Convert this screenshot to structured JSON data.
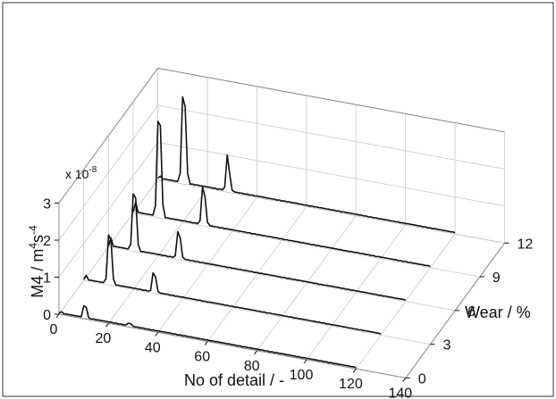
{
  "chart_data": {
    "type": "line",
    "projection": "3d-waterfall",
    "grid": true,
    "x_axis": {
      "label": "No of detail / -",
      "range": [
        0,
        140
      ],
      "ticks": [
        "0",
        "20",
        "40",
        "60",
        "80",
        "100",
        "120",
        "140"
      ]
    },
    "y_axis": {
      "label": "Wear / %",
      "range": [
        0,
        12
      ],
      "ticks": [
        "0",
        "3",
        "6",
        "9",
        "12"
      ]
    },
    "z_axis": {
      "label_main": "M4 / m",
      "label_sup1": "4",
      "label_mid": "s",
      "label_sup2": "-4",
      "range": [
        0,
        3e-08
      ],
      "ticks": [
        "0",
        "1",
        "2",
        "3"
      ],
      "multiplier": "x 10",
      "multiplier_exp": "-8"
    },
    "series": [
      {
        "wear": 0,
        "peaks": [
          [
            1,
            0.08
          ],
          [
            10,
            0.35
          ],
          [
            11,
            0.32
          ],
          [
            28,
            0.1
          ],
          [
            29,
            0.1
          ]
        ]
      },
      {
        "wear": 3,
        "peaks": [
          [
            1,
            0.15
          ],
          [
            10,
            1.35
          ],
          [
            11,
            1.25
          ],
          [
            28,
            0.55
          ],
          [
            29,
            0.45
          ]
        ]
      },
      {
        "wear": 6,
        "peaks": [
          [
            1,
            0.25
          ],
          [
            10,
            1.55
          ],
          [
            11,
            1.45
          ],
          [
            28,
            0.75
          ],
          [
            29,
            0.6
          ]
        ]
      },
      {
        "wear": 9,
        "peaks": [
          [
            1,
            0.3
          ],
          [
            10,
            2.6
          ],
          [
            11,
            2.5
          ],
          [
            28,
            1.05
          ],
          [
            29,
            0.8
          ]
        ]
      },
      {
        "wear": 12,
        "peaks": [
          [
            1,
            0.1
          ],
          [
            10,
            2.35
          ],
          [
            11,
            2.1
          ],
          [
            28,
            1.0
          ],
          [
            29,
            0.5
          ]
        ]
      }
    ]
  }
}
